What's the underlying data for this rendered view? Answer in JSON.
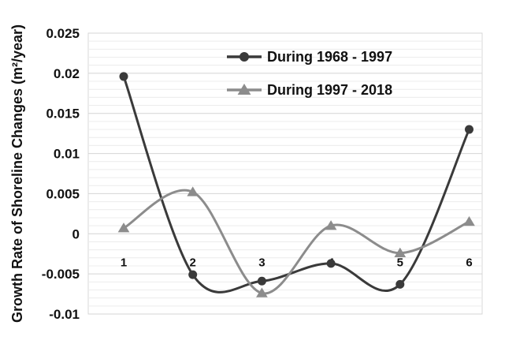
{
  "chart_data": {
    "type": "line",
    "categories": [
      "1",
      "2",
      "3",
      "4",
      "5",
      "6"
    ],
    "ylabel": "Growth Rate of Shoreline Changes (m²/year)",
    "ylim": [
      -0.01,
      0.025
    ],
    "yticks": [
      -0.01,
      -0.005,
      0,
      0.005,
      0.01,
      0.015,
      0.02,
      0.025
    ],
    "ytick_labels": [
      "-0.01",
      "-0.005",
      "0",
      "0.005",
      "0.01",
      "0.015",
      "0.02",
      "0.025"
    ],
    "grid": true,
    "legend_position": "top-center",
    "series": [
      {
        "name": "During 1968 - 1997",
        "values": [
          0.0196,
          -0.0051,
          -0.0059,
          -0.0037,
          -0.0063,
          0.013
        ],
        "color": "#3a3a3a",
        "marker": "circle"
      },
      {
        "name": "During 1997 - 2018",
        "values": [
          0.0007,
          0.0052,
          -0.0074,
          0.001,
          -0.0024,
          0.0015
        ],
        "color": "#8c8c8c",
        "marker": "triangle"
      }
    ]
  }
}
